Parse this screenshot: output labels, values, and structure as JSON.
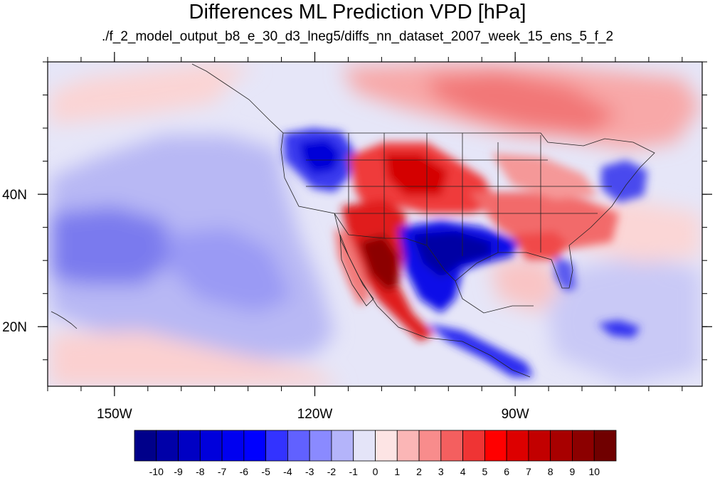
{
  "title": "Differences ML Prediction VPD [hPa]",
  "subtitle": "./f_2_model_output_b8_e_30_d3_lneg5/diffs_nn_dataset_2007_week_15_ens_5_f_2",
  "map": {
    "lon_range": [
      -160,
      -62
    ],
    "lat_range": [
      11,
      60
    ],
    "lon_ticks": [
      {
        "value": -150,
        "label": "150W"
      },
      {
        "value": -120,
        "label": "120W"
      },
      {
        "value": -90,
        "label": "90W"
      }
    ],
    "lat_ticks": [
      {
        "value": 40,
        "label": "40N"
      },
      {
        "value": 20,
        "label": "20N"
      }
    ]
  },
  "colorbar": {
    "labels": [
      "-10",
      "-9",
      "-8",
      "-7",
      "-6",
      "-5",
      "-4",
      "-3",
      "-2",
      "-1",
      "0",
      "1",
      "2",
      "3",
      "4",
      "5",
      "6",
      "7",
      "8",
      "9",
      "10"
    ],
    "colors": [
      "#00008a",
      "#0000a8",
      "#0000c4",
      "#0000dc",
      "#0000f0",
      "#0000ff",
      "#3333ff",
      "#6161ff",
      "#8a8aff",
      "#b4b4fa",
      "#e4e4f8",
      "#fde4e4",
      "#fbb6b6",
      "#f88c8c",
      "#f45f5f",
      "#ef3434",
      "#ff0000",
      "#dd0000",
      "#c20000",
      "#a80000",
      "#8c0000",
      "#700000"
    ]
  }
}
